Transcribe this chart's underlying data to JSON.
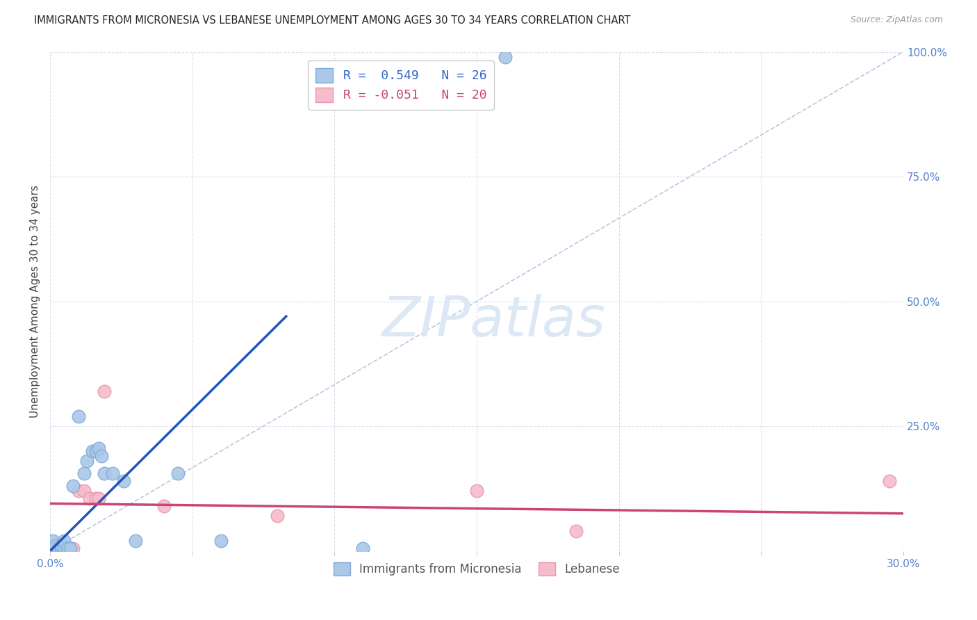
{
  "title": "IMMIGRANTS FROM MICRONESIA VS LEBANESE UNEMPLOYMENT AMONG AGES 30 TO 34 YEARS CORRELATION CHART",
  "source": "Source: ZipAtlas.com",
  "ylabel": "Unemployment Among Ages 30 to 34 years",
  "xlim": [
    0.0,
    0.3
  ],
  "ylim": [
    0.0,
    1.0
  ],
  "xticks": [
    0.0,
    0.05,
    0.1,
    0.15,
    0.2,
    0.25,
    0.3
  ],
  "xtick_labels": [
    "0.0%",
    "",
    "",
    "",
    "",
    "",
    "30.0%"
  ],
  "yticks_right": [
    0.0,
    0.25,
    0.5,
    0.75,
    1.0
  ],
  "ytick_labels_right": [
    "",
    "25.0%",
    "50.0%",
    "75.0%",
    "100.0%"
  ],
  "blue_scatter": [
    [
      0.001,
      0.02
    ],
    [
      0.002,
      0.005
    ],
    [
      0.002,
      0.01
    ],
    [
      0.003,
      0.005
    ],
    [
      0.004,
      0.005
    ],
    [
      0.004,
      0.01
    ],
    [
      0.005,
      0.005
    ],
    [
      0.005,
      0.02
    ],
    [
      0.006,
      0.005
    ],
    [
      0.007,
      0.005
    ],
    [
      0.008,
      0.13
    ],
    [
      0.01,
      0.27
    ],
    [
      0.012,
      0.155
    ],
    [
      0.013,
      0.18
    ],
    [
      0.015,
      0.2
    ],
    [
      0.016,
      0.2
    ],
    [
      0.017,
      0.205
    ],
    [
      0.018,
      0.19
    ],
    [
      0.019,
      0.155
    ],
    [
      0.022,
      0.155
    ],
    [
      0.026,
      0.14
    ],
    [
      0.03,
      0.02
    ],
    [
      0.045,
      0.155
    ],
    [
      0.06,
      0.02
    ],
    [
      0.11,
      0.005
    ],
    [
      0.16,
      0.99
    ]
  ],
  "pink_scatter": [
    [
      0.001,
      0.005
    ],
    [
      0.002,
      0.005
    ],
    [
      0.003,
      0.005
    ],
    [
      0.004,
      0.005
    ],
    [
      0.005,
      0.005
    ],
    [
      0.005,
      0.005
    ],
    [
      0.006,
      0.005
    ],
    [
      0.007,
      0.005
    ],
    [
      0.008,
      0.005
    ],
    [
      0.01,
      0.12
    ],
    [
      0.012,
      0.12
    ],
    [
      0.014,
      0.105
    ],
    [
      0.016,
      0.105
    ],
    [
      0.017,
      0.105
    ],
    [
      0.019,
      0.32
    ],
    [
      0.04,
      0.09
    ],
    [
      0.08,
      0.07
    ],
    [
      0.15,
      0.12
    ],
    [
      0.185,
      0.04
    ],
    [
      0.295,
      0.14
    ]
  ],
  "blue_trend_x": [
    0.0,
    0.083
  ],
  "blue_trend_y": [
    0.0,
    0.47
  ],
  "pink_trend_x": [
    0.0,
    0.3
  ],
  "pink_trend_y": [
    0.095,
    0.075
  ],
  "diag_line_x": [
    0.0,
    0.3
  ],
  "diag_line_y": [
    0.0,
    1.0
  ],
  "legend_r_blue": "R =  0.549",
  "legend_n_blue": "N = 26",
  "legend_r_pink": "R = -0.051",
  "legend_n_pink": "N = 20",
  "scatter_color_blue": "#aac8e8",
  "scatter_edge_blue": "#80aad8",
  "scatter_color_pink": "#f5bccb",
  "scatter_edge_pink": "#e896b0",
  "trend_color_blue": "#2255bb",
  "trend_color_pink": "#cc4477",
  "diag_color": "#b8c8e0",
  "watermark_color": "#dce8f5",
  "watermark_text": "ZIPatlas",
  "background_color": "#ffffff",
  "grid_color": "#dde0ec"
}
